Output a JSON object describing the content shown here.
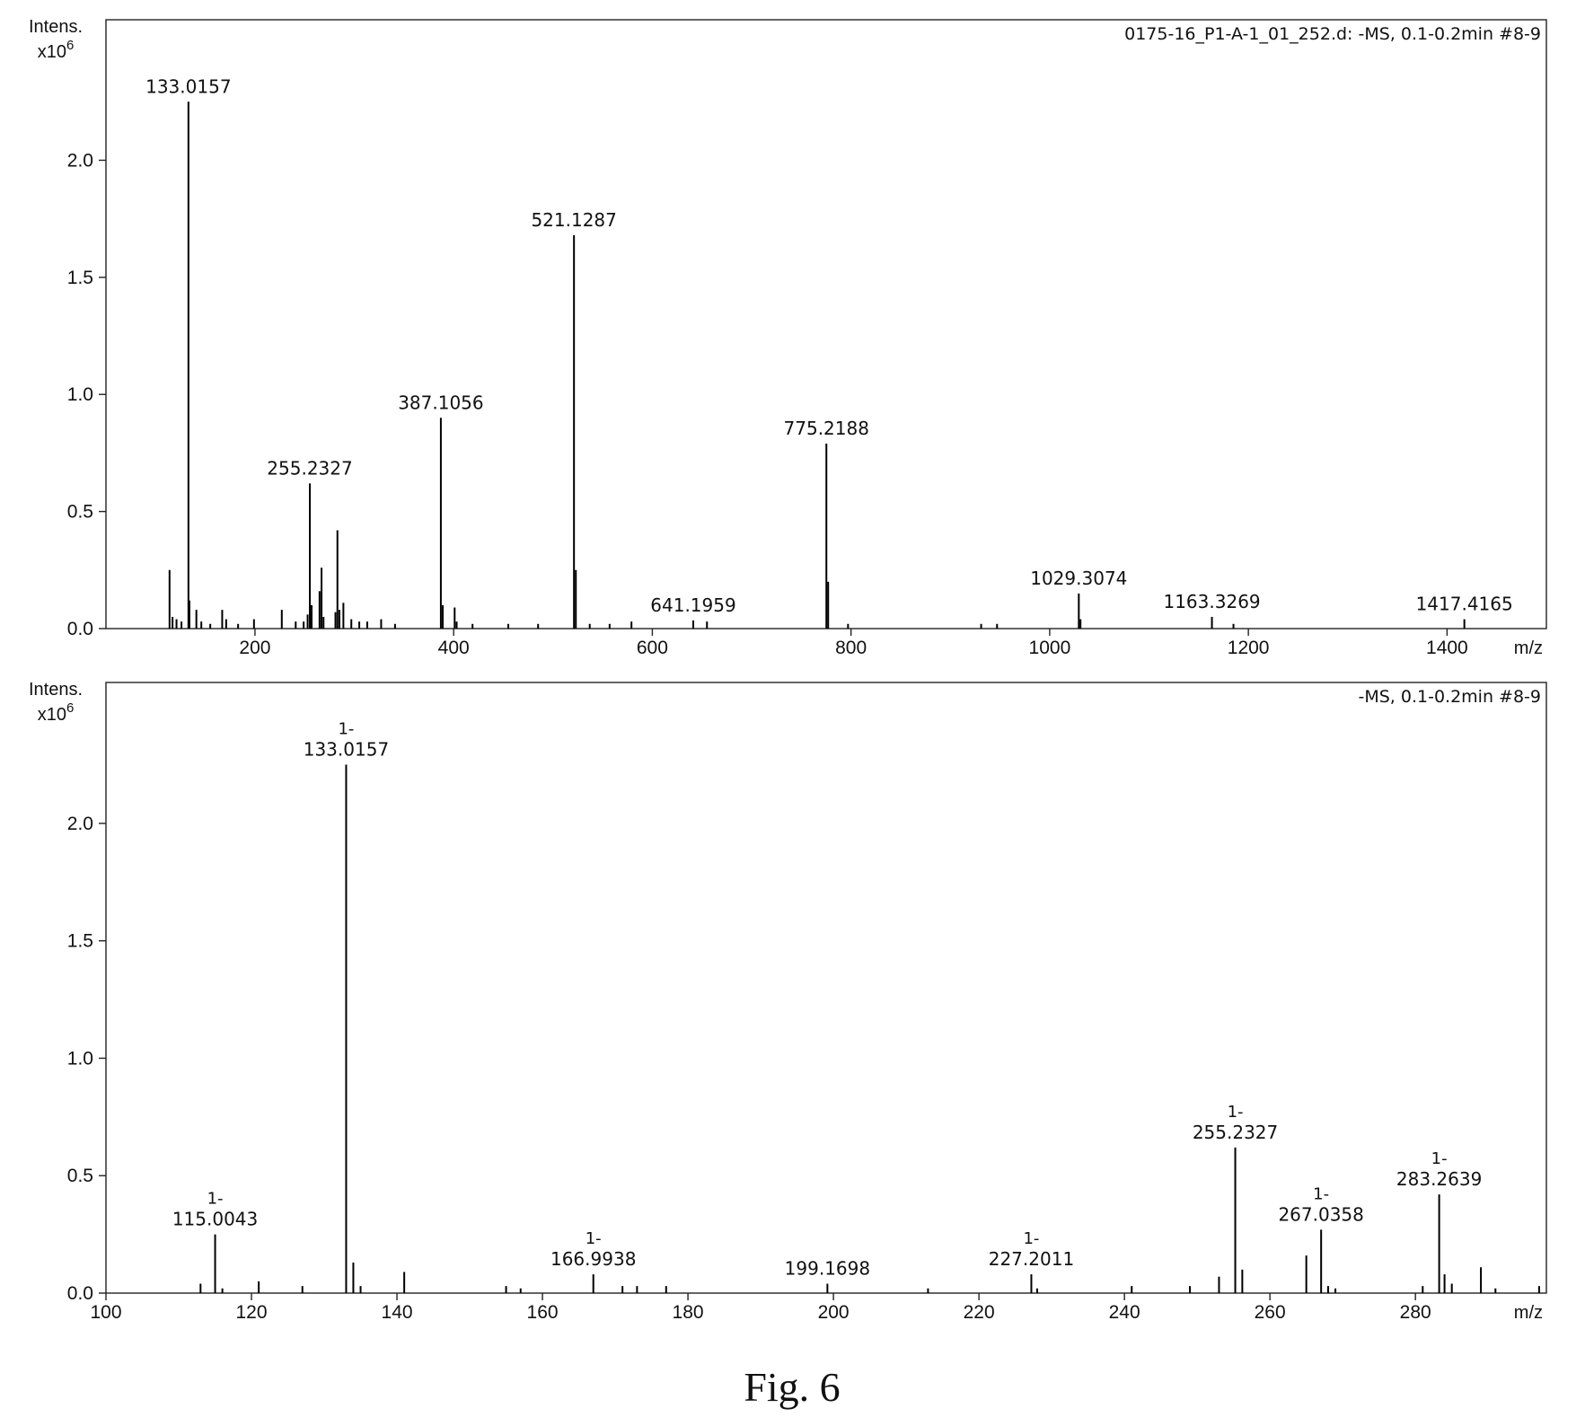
{
  "figure": {
    "caption": "Fig. 6"
  },
  "chart_data": [
    {
      "type": "bar",
      "chart_kind": "mass spectrum (stick plot)",
      "ylabel_line1": "Intens.",
      "ylabel_line2_base": "x10",
      "ylabel_line2_exp": "6",
      "xlabel": "m/z",
      "info_text": "0175-16_P1-A-1_01_252.d: -MS, 0.1-0.2min #8-9",
      "xlim": [
        50,
        1500
      ],
      "ylim": [
        0,
        2.6
      ],
      "x_ticks": [
        200,
        400,
        600,
        800,
        1000,
        1200,
        1400
      ],
      "y_ticks": [
        "0.0",
        "0.5",
        "1.0",
        "1.5",
        "2.0"
      ],
      "y_tick_values": [
        0,
        0.5,
        1.0,
        1.5,
        2.0
      ],
      "grid": false,
      "peaks": [
        {
          "x": 114,
          "y": 0.25
        },
        {
          "x": 117,
          "y": 0.05
        },
        {
          "x": 121,
          "y": 0.04
        },
        {
          "x": 126,
          "y": 0.03
        },
        {
          "x": 133.0157,
          "y": 2.25
        },
        {
          "x": 134,
          "y": 0.12
        },
        {
          "x": 141,
          "y": 0.08
        },
        {
          "x": 146,
          "y": 0.03
        },
        {
          "x": 155,
          "y": 0.02
        },
        {
          "x": 167,
          "y": 0.08
        },
        {
          "x": 171,
          "y": 0.04
        },
        {
          "x": 183,
          "y": 0.02
        },
        {
          "x": 199,
          "y": 0.04
        },
        {
          "x": 227,
          "y": 0.08
        },
        {
          "x": 241,
          "y": 0.03
        },
        {
          "x": 249,
          "y": 0.03
        },
        {
          "x": 253,
          "y": 0.06
        },
        {
          "x": 255.2327,
          "y": 0.62
        },
        {
          "x": 257,
          "y": 0.1
        },
        {
          "x": 265,
          "y": 0.16
        },
        {
          "x": 267,
          "y": 0.26
        },
        {
          "x": 269,
          "y": 0.05
        },
        {
          "x": 281,
          "y": 0.07
        },
        {
          "x": 283,
          "y": 0.42
        },
        {
          "x": 285,
          "y": 0.08
        },
        {
          "x": 289,
          "y": 0.11
        },
        {
          "x": 297,
          "y": 0.04
        },
        {
          "x": 305,
          "y": 0.03
        },
        {
          "x": 313,
          "y": 0.03
        },
        {
          "x": 327,
          "y": 0.04
        },
        {
          "x": 341,
          "y": 0.02
        },
        {
          "x": 387.1056,
          "y": 0.9
        },
        {
          "x": 389,
          "y": 0.1
        },
        {
          "x": 401,
          "y": 0.09
        },
        {
          "x": 403,
          "y": 0.03
        },
        {
          "x": 419,
          "y": 0.02
        },
        {
          "x": 455,
          "y": 0.02
        },
        {
          "x": 485,
          "y": 0.02
        },
        {
          "x": 521.1287,
          "y": 1.68
        },
        {
          "x": 523,
          "y": 0.25
        },
        {
          "x": 537,
          "y": 0.02
        },
        {
          "x": 557,
          "y": 0.02
        },
        {
          "x": 579,
          "y": 0.03
        },
        {
          "x": 641.1959,
          "y": 0.035
        },
        {
          "x": 655,
          "y": 0.03
        },
        {
          "x": 775.2188,
          "y": 0.79
        },
        {
          "x": 777,
          "y": 0.2
        },
        {
          "x": 797,
          "y": 0.02
        },
        {
          "x": 931,
          "y": 0.02
        },
        {
          "x": 947,
          "y": 0.02
        },
        {
          "x": 1029.3074,
          "y": 0.15
        },
        {
          "x": 1031,
          "y": 0.04
        },
        {
          "x": 1163.3269,
          "y": 0.05
        },
        {
          "x": 1185,
          "y": 0.02
        },
        {
          "x": 1417.4165,
          "y": 0.04
        }
      ],
      "labels": [
        {
          "x": 133.0157,
          "y": 2.25,
          "text": "133.0157"
        },
        {
          "x": 255.2327,
          "y": 0.62,
          "text": "255.2327"
        },
        {
          "x": 387.1056,
          "y": 0.9,
          "text": "387.1056"
        },
        {
          "x": 521.1287,
          "y": 1.68,
          "text": "521.1287"
        },
        {
          "x": 641.1959,
          "y": 0.035,
          "text": "641.1959"
        },
        {
          "x": 775.2188,
          "y": 0.79,
          "text": "775.2188"
        },
        {
          "x": 1029.3074,
          "y": 0.15,
          "text": "1029.3074"
        },
        {
          "x": 1163.3269,
          "y": 0.05,
          "text": "1163.3269"
        },
        {
          "x": 1417.4165,
          "y": 0.04,
          "text": "1417.4165"
        }
      ]
    },
    {
      "type": "bar",
      "chart_kind": "mass spectrum (stick plot)",
      "ylabel_line1": "Intens.",
      "ylabel_line2_base": "x10",
      "ylabel_line2_exp": "6",
      "xlabel": "m/z",
      "info_text": "-MS, 0.1-0.2min #8-9",
      "xlim": [
        100,
        298
      ],
      "ylim": [
        0,
        2.6
      ],
      "x_ticks": [
        100,
        120,
        140,
        160,
        180,
        200,
        220,
        240,
        260,
        280
      ],
      "y_ticks": [
        "0.0",
        "0.5",
        "1.0",
        "1.5",
        "2.0"
      ],
      "y_tick_values": [
        0,
        0.5,
        1.0,
        1.5,
        2.0
      ],
      "grid": false,
      "peaks": [
        {
          "x": 113,
          "y": 0.04
        },
        {
          "x": 115.0043,
          "y": 0.25
        },
        {
          "x": 116,
          "y": 0.02
        },
        {
          "x": 121,
          "y": 0.05
        },
        {
          "x": 127,
          "y": 0.03
        },
        {
          "x": 133.0157,
          "y": 2.25
        },
        {
          "x": 134,
          "y": 0.13
        },
        {
          "x": 135,
          "y": 0.03
        },
        {
          "x": 141,
          "y": 0.09
        },
        {
          "x": 155,
          "y": 0.03
        },
        {
          "x": 157,
          "y": 0.02
        },
        {
          "x": 166.9938,
          "y": 0.08
        },
        {
          "x": 171,
          "y": 0.03
        },
        {
          "x": 173,
          "y": 0.03
        },
        {
          "x": 177,
          "y": 0.03
        },
        {
          "x": 199.1698,
          "y": 0.04
        },
        {
          "x": 213,
          "y": 0.02
        },
        {
          "x": 227.2011,
          "y": 0.08
        },
        {
          "x": 228,
          "y": 0.02
        },
        {
          "x": 241,
          "y": 0.03
        },
        {
          "x": 249,
          "y": 0.03
        },
        {
          "x": 253,
          "y": 0.07
        },
        {
          "x": 255.2327,
          "y": 0.62
        },
        {
          "x": 256.2,
          "y": 0.1
        },
        {
          "x": 265,
          "y": 0.16
        },
        {
          "x": 267.0358,
          "y": 0.27
        },
        {
          "x": 268,
          "y": 0.03
        },
        {
          "x": 269,
          "y": 0.02
        },
        {
          "x": 281,
          "y": 0.03
        },
        {
          "x": 283.2639,
          "y": 0.42
        },
        {
          "x": 284,
          "y": 0.08
        },
        {
          "x": 285,
          "y": 0.04
        },
        {
          "x": 289,
          "y": 0.11
        },
        {
          "x": 291,
          "y": 0.02
        },
        {
          "x": 297,
          "y": 0.03
        }
      ],
      "labels": [
        {
          "x": 115.0043,
          "y": 0.25,
          "charge": "1-",
          "text": "115.0043"
        },
        {
          "x": 133.0157,
          "y": 2.25,
          "charge": "1-",
          "text": "133.0157"
        },
        {
          "x": 166.9938,
          "y": 0.08,
          "charge": "1-",
          "text": "166.9938"
        },
        {
          "x": 199.1698,
          "y": 0.04,
          "charge": "",
          "text": "199.1698"
        },
        {
          "x": 227.2011,
          "y": 0.08,
          "charge": "1-",
          "text": "227.2011"
        },
        {
          "x": 255.2327,
          "y": 0.62,
          "charge": "1-",
          "text": "255.2327"
        },
        {
          "x": 267.0358,
          "y": 0.27,
          "charge": "1-",
          "text": "267.0358"
        },
        {
          "x": 283.2639,
          "y": 0.42,
          "charge": "1-",
          "text": "283.2639"
        }
      ]
    }
  ]
}
